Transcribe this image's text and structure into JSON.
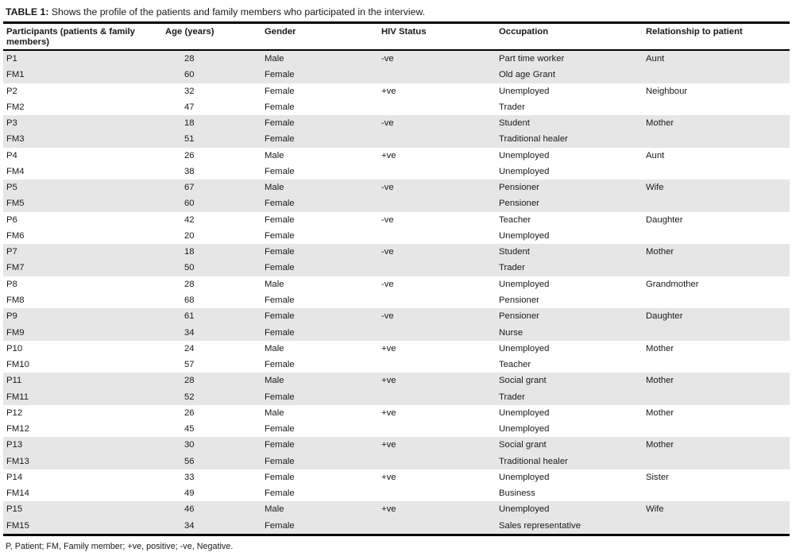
{
  "caption": {
    "label": "TABLE 1:",
    "text": "Shows the profile of the patients and family members who participated in the interview."
  },
  "table": {
    "columns": [
      "Participants (patients & family members)",
      "Age (years)",
      "Gender",
      "HIV Status",
      "Occupation",
      "Relationship to patient"
    ],
    "rows": [
      {
        "participant": "P1",
        "age": 28,
        "gender": "Male",
        "hiv": "-ve",
        "occupation": "Part time worker",
        "relationship": "Aunt"
      },
      {
        "participant": "FM1",
        "age": 60,
        "gender": "Female",
        "hiv": "",
        "occupation": "Old age Grant",
        "relationship": ""
      },
      {
        "participant": "P2",
        "age": 32,
        "gender": "Female",
        "hiv": "+ve",
        "occupation": "Unemployed",
        "relationship": "Neighbour"
      },
      {
        "participant": "FM2",
        "age": 47,
        "gender": "Female",
        "hiv": "",
        "occupation": "Trader",
        "relationship": ""
      },
      {
        "participant": "P3",
        "age": 18,
        "gender": "Female",
        "hiv": "-ve",
        "occupation": "Student",
        "relationship": "Mother"
      },
      {
        "participant": "FM3",
        "age": 51,
        "gender": "Female",
        "hiv": "",
        "occupation": "Traditional healer",
        "relationship": ""
      },
      {
        "participant": "P4",
        "age": 26,
        "gender": "Male",
        "hiv": "+ve",
        "occupation": "Unemployed",
        "relationship": "Aunt"
      },
      {
        "participant": "FM4",
        "age": 38,
        "gender": "Female",
        "hiv": "",
        "occupation": "Unemployed",
        "relationship": ""
      },
      {
        "participant": "P5",
        "age": 67,
        "gender": "Male",
        "hiv": "-ve",
        "occupation": "Pensioner",
        "relationship": "Wife"
      },
      {
        "participant": "FM5",
        "age": 60,
        "gender": "Female",
        "hiv": "",
        "occupation": "Pensioner",
        "relationship": ""
      },
      {
        "participant": "P6",
        "age": 42,
        "gender": "Female",
        "hiv": "-ve",
        "occupation": "Teacher",
        "relationship": "Daughter"
      },
      {
        "participant": "FM6",
        "age": 20,
        "gender": "Female",
        "hiv": "",
        "occupation": "Unemployed",
        "relationship": ""
      },
      {
        "participant": "P7",
        "age": 18,
        "gender": "Female",
        "hiv": "-ve",
        "occupation": "Student",
        "relationship": "Mother"
      },
      {
        "participant": "FM7",
        "age": 50,
        "gender": "Female",
        "hiv": "",
        "occupation": "Trader",
        "relationship": ""
      },
      {
        "participant": "P8",
        "age": 28,
        "gender": "Male",
        "hiv": "-ve",
        "occupation": "Unemployed",
        "relationship": "Grandmother"
      },
      {
        "participant": "FM8",
        "age": 68,
        "gender": "Female",
        "hiv": "",
        "occupation": "Pensioner",
        "relationship": ""
      },
      {
        "participant": "P9",
        "age": 61,
        "gender": "Female",
        "hiv": "-ve",
        "occupation": "Pensioner",
        "relationship": "Daughter"
      },
      {
        "participant": "FM9",
        "age": 34,
        "gender": "Female",
        "hiv": "",
        "occupation": "Nurse",
        "relationship": ""
      },
      {
        "participant": "P10",
        "age": 24,
        "gender": "Male",
        "hiv": "+ve",
        "occupation": "Unemployed",
        "relationship": "Mother"
      },
      {
        "participant": "FM10",
        "age": 57,
        "gender": "Female",
        "hiv": "",
        "occupation": "Teacher",
        "relationship": ""
      },
      {
        "participant": "P11",
        "age": 28,
        "gender": "Male",
        "hiv": "+ve",
        "occupation": "Social grant",
        "relationship": "Mother"
      },
      {
        "participant": "FM11",
        "age": 52,
        "gender": "Female",
        "hiv": "",
        "occupation": "Trader",
        "relationship": ""
      },
      {
        "participant": "P12",
        "age": 26,
        "gender": "Male",
        "hiv": "+ve",
        "occupation": "Unemployed",
        "relationship": "Mother"
      },
      {
        "participant": "FM12",
        "age": 45,
        "gender": "Female",
        "hiv": "",
        "occupation": "Unemployed",
        "relationship": ""
      },
      {
        "participant": "P13",
        "age": 30,
        "gender": "Female",
        "hiv": "+ve",
        "occupation": "Social grant",
        "relationship": "Mother"
      },
      {
        "participant": "FM13",
        "age": 56,
        "gender": "Female",
        "hiv": "",
        "occupation": "Traditional healer",
        "relationship": ""
      },
      {
        "participant": "P14",
        "age": 33,
        "gender": "Female",
        "hiv": "+ve",
        "occupation": "Unemployed",
        "relationship": "Sister"
      },
      {
        "participant": "FM14",
        "age": 49,
        "gender": "Female",
        "hiv": "",
        "occupation": "Business",
        "relationship": ""
      },
      {
        "participant": "P15",
        "age": 46,
        "gender": "Male",
        "hiv": "+ve",
        "occupation": "Unemployed",
        "relationship": "Wife"
      },
      {
        "participant": "FM15",
        "age": 34,
        "gender": "Female",
        "hiv": "",
        "occupation": "Sales representative",
        "relationship": ""
      }
    ]
  },
  "footnote": "P, Patient; FM, Family member; +ve, positive; -ve, Negative.",
  "colors": {
    "row_shade": "#e6e6e6",
    "border": "#000000",
    "text": "#1a1a1a"
  }
}
